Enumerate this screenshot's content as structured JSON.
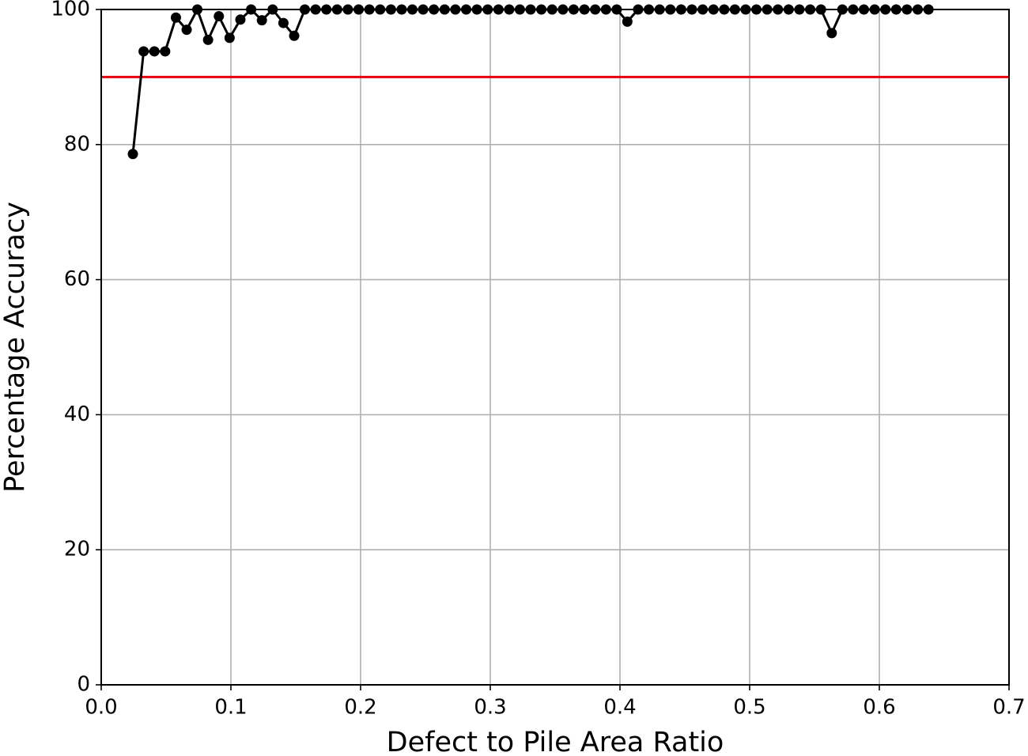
{
  "chart_data": {
    "type": "line",
    "xlabel": "Defect to Pile Area Ratio",
    "ylabel": "Percentage Accuracy",
    "xlim": [
      0,
      0.7
    ],
    "xticks": [
      {
        "value": 0,
        "label": "0.0"
      },
      0.1,
      0.2,
      0.3,
      0.4,
      0.5,
      0.6,
      0.7
    ],
    "ylim": [
      0,
      100
    ],
    "yticks": [
      0,
      20,
      40,
      60,
      80,
      100
    ],
    "grid": true,
    "hline": 90,
    "hline_color": "#e8000b",
    "series": [
      {
        "color": "#000000",
        "x": [
          0.0244,
          0.0327,
          0.041,
          0.0493,
          0.0576,
          0.0659,
          0.0741,
          0.0824,
          0.0907,
          0.099,
          0.1073,
          0.1156,
          0.1239,
          0.1322,
          0.1405,
          0.1488,
          0.157,
          0.1653,
          0.1736,
          0.1819,
          0.1902,
          0.1985,
          0.2068,
          0.2151,
          0.2234,
          0.2317,
          0.2399,
          0.2482,
          0.2565,
          0.2648,
          0.2731,
          0.2814,
          0.2897,
          0.298,
          0.3063,
          0.3146,
          0.3228,
          0.3311,
          0.3394,
          0.3477,
          0.356,
          0.3643,
          0.3726,
          0.3809,
          0.3892,
          0.3975,
          0.4057,
          0.414,
          0.4223,
          0.4306,
          0.4389,
          0.4472,
          0.4555,
          0.4638,
          0.4721,
          0.4804,
          0.4886,
          0.4969,
          0.5052,
          0.5135,
          0.5218,
          0.5301,
          0.5384,
          0.5467,
          0.555,
          0.5633,
          0.5715,
          0.5798,
          0.5881,
          0.5964,
          0.6047,
          0.613,
          0.6213,
          0.6296,
          0.6379
        ],
        "values": [
          78.6,
          93.8,
          93.8,
          93.8,
          98.8,
          97.0,
          100,
          95.5,
          99.0,
          95.8,
          98.5,
          100,
          98.4,
          100,
          98.0,
          96.1,
          100,
          100,
          100,
          100,
          100,
          100,
          100,
          100,
          100,
          100,
          100,
          100,
          100,
          100,
          100,
          100,
          100,
          100,
          100,
          100,
          100,
          100,
          100,
          100,
          100,
          100,
          100,
          100,
          100,
          100,
          98.2,
          100,
          100,
          100,
          100,
          100,
          100,
          100,
          100,
          100,
          100,
          100,
          100,
          100,
          100,
          100,
          100,
          100,
          100,
          96.5,
          100,
          100,
          100,
          100,
          100,
          100,
          100,
          100,
          100
        ]
      }
    ]
  }
}
